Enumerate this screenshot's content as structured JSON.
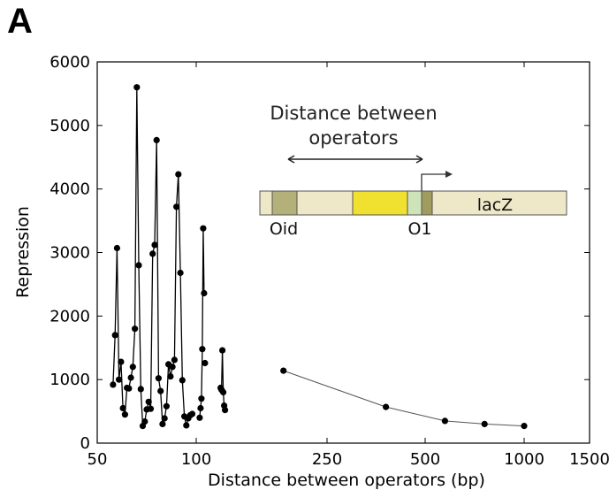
{
  "panel_label": "A",
  "chart_data": {
    "type": "line",
    "xlabel": "Distance between operators (bp)",
    "ylabel": "Repression",
    "ylim": [
      0,
      6000
    ],
    "y_ticks": [
      0,
      1000,
      2000,
      3000,
      4000,
      5000,
      6000
    ],
    "x_ticks": [
      "50",
      "100",
      "250",
      "500",
      "1000",
      "1500"
    ],
    "x_scale": "piecewise",
    "grid": false,
    "legend": "none",
    "series": [
      {
        "color": "#000000",
        "x": [
          58,
          59,
          60,
          61,
          62,
          63,
          64,
          65,
          66,
          67,
          68,
          69,
          70,
          71,
          72,
          73,
          74,
          75,
          76,
          77,
          78,
          79,
          80,
          81,
          82,
          83,
          84,
          85,
          86,
          87,
          88,
          89,
          90,
          91,
          92,
          93,
          94,
          95,
          96,
          97,
          98
        ],
        "y": [
          920,
          1700,
          3070,
          1000,
          1280,
          550,
          450,
          870,
          860,
          1030,
          1200,
          1800,
          5600,
          2800,
          850,
          270,
          340,
          530,
          650,
          540,
          2980,
          3120,
          4770,
          1020,
          820,
          300,
          390,
          580,
          1240,
          1050,
          1200,
          1310,
          3720,
          4230,
          2680,
          990,
          420,
          280,
          390,
          440,
          460
        ]
      },
      {
        "color": "#000000",
        "x": [
          104,
          105,
          106,
          107,
          108,
          109
        ],
        "y": [
          400,
          550,
          700,
          1480,
          3380,
          2360
        ]
      },
      {
        "color": "#000000",
        "x": [
          110
        ],
        "y": [
          1260
        ]
      },
      {
        "color": "#000000",
        "x": [
          128,
          129,
          130,
          131,
          132,
          133
        ],
        "y": [
          870,
          840,
          1460,
          800,
          590,
          520
        ]
      },
      {
        "color": "#555555",
        "x": [
          200,
          400,
          600,
          800,
          1000
        ],
        "y": [
          1140,
          570,
          350,
          300,
          270
        ]
      }
    ]
  },
  "inset": {
    "arrow_label_line1": "Distance between",
    "arrow_label_line2": "operators",
    "label_oid": "Oid",
    "label_o1": "O1",
    "label_lacz": "lacZ",
    "colors": {
      "backbone": "#efe8c8",
      "oid_box": "#b4b079",
      "promoter": "#f0e030",
      "o1_box": "#cfe3b8",
      "o1_dark": "#a09c60"
    }
  }
}
